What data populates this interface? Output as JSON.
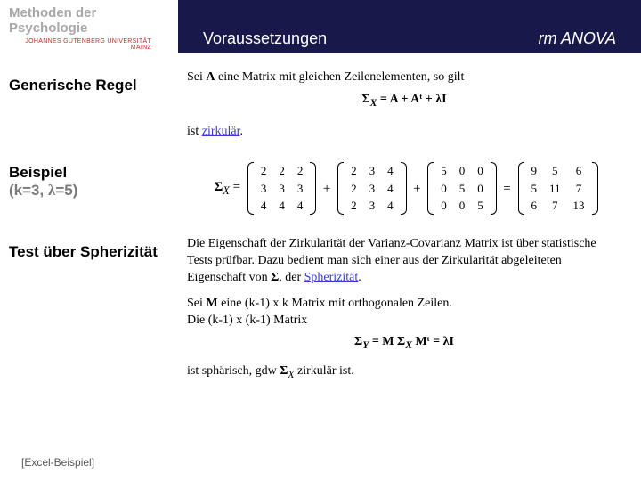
{
  "header": {
    "title_line1": "Methoden der",
    "title_line2": "Psychologie",
    "logo": "JOHANNES GUTENBERG UNIVERSITÄT MAINZ",
    "section": "Voraussetzungen",
    "topic": "rm ANOVA"
  },
  "s1": {
    "heading": "Generische Regel",
    "text_pre": "Sei ",
    "text_bold": "A",
    "text_post": " eine Matrix mit gleichen Zeilenelementen, so gilt",
    "formula": "Σ",
    "formula_sub": "X",
    "formula_eq": " = A + Aᵗ + λI",
    "tail_pre": "ist ",
    "tail_link": "zirkulär",
    "tail_post": "."
  },
  "s2": {
    "heading_a": "Beispiel",
    "heading_b": "(k=3, ",
    "heading_c": "=5)",
    "sigma": "Σ",
    "sigma_sub": "X",
    "eq": " = ",
    "plus": " + ",
    "m1": [
      [
        "2",
        "2",
        "2"
      ],
      [
        "3",
        "3",
        "3"
      ],
      [
        "4",
        "4",
        "4"
      ]
    ],
    "m2": [
      [
        "2",
        "3",
        "4"
      ],
      [
        "2",
        "3",
        "4"
      ],
      [
        "2",
        "3",
        "4"
      ]
    ],
    "m3": [
      [
        "5",
        "0",
        "0"
      ],
      [
        "0",
        "5",
        "0"
      ],
      [
        "0",
        "0",
        "5"
      ]
    ],
    "m4": [
      [
        "9",
        "5",
        "6"
      ],
      [
        "5",
        "11",
        "7"
      ],
      [
        "6",
        "7",
        "13"
      ]
    ]
  },
  "s3": {
    "heading": "Test über Spherizität",
    "para_a": "Die Eigenschaft der Zirkularität der Varianz-Covarianz Matrix ist über statistische Tests prüfbar. Dazu bedient man sich einer aus der Zirkularität abgeleiteten Eigenschaft von ",
    "para_b": "Σ",
    "para_c": ", der ",
    "para_link": "Spherizität",
    "para_d": ".",
    "line2_a": "Sei ",
    "line2_b": "M",
    "line2_c": " eine (k-1) x k Matrix mit orthogonalen Zeilen.",
    "line3": "Die (k-1) x (k-1) Matrix",
    "formula_a": "Σ",
    "formula_sub1": "Y",
    "formula_mid": " = M Σ",
    "formula_sub2": "X",
    "formula_end": " Mᵗ = λI",
    "tail_a": "ist sphärisch, gdw ",
    "tail_b": "Σ",
    "tail_sub": "X",
    "tail_c": " zirkulär ist."
  },
  "footer": {
    "excel": "[Excel-Beispiel]"
  }
}
